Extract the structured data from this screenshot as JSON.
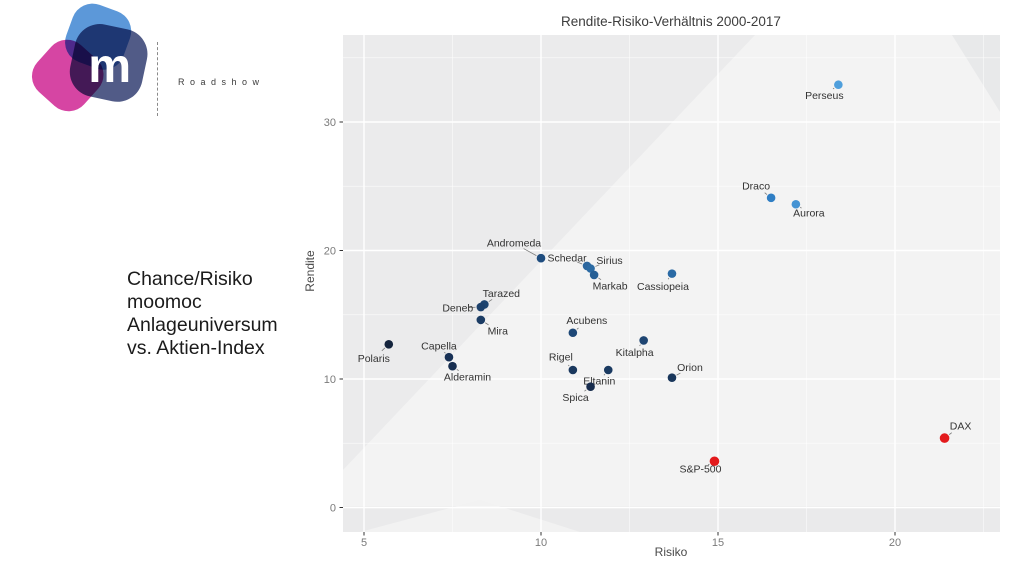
{
  "branding": {
    "logo_letter": "m",
    "tagline": "Roadshow",
    "logo_colors": {
      "blue": "#4e8fd6",
      "magenta": "#cf2493",
      "navy": "#323e72"
    }
  },
  "caption": {
    "lines": [
      "Chance/Risiko",
      "moomoc",
      "Anlageuniversum",
      "vs. Aktien-Index"
    ]
  },
  "chart_data": {
    "type": "scatter",
    "title": "Rendite-Risiko-Verhältnis 2000-2017",
    "xlabel": "Risiko",
    "ylabel": "Rendite",
    "x_ticks": [
      5,
      10,
      15,
      20
    ],
    "y_ticks": [
      0,
      10,
      20,
      30
    ],
    "xlim": [
      4.4,
      23.0
    ],
    "ylim": [
      -1.9,
      36.8
    ],
    "grid": "white major and minor gridlines on light gray panel",
    "legend": "none",
    "panel_color": "#f3f3f3",
    "series": [
      {
        "name": "Anlageuniversum",
        "points": [
          {
            "label": "Polaris",
            "x": 5.7,
            "y": 12.7,
            "color": "#14243d",
            "dx": -15,
            "dy": 14
          },
          {
            "label": "Capella",
            "x": 7.4,
            "y": 11.7,
            "color": "#183156",
            "dx": -10,
            "dy": -11
          },
          {
            "label": "Alderamin",
            "x": 7.5,
            "y": 11.0,
            "color": "#172e50",
            "dx": 15,
            "dy": 11
          },
          {
            "label": "Tarazed",
            "x": 8.4,
            "y": 15.8,
            "color": "#1d4470",
            "dx": 17,
            "dy": -11
          },
          {
            "label": "Deneb",
            "x": 8.3,
            "y": 15.6,
            "color": "#1c406b",
            "dx": -23,
            "dy": 1
          },
          {
            "label": "Mira",
            "x": 8.3,
            "y": 14.6,
            "color": "#1b3c64",
            "dx": 17,
            "dy": 11
          },
          {
            "label": "Andromeda",
            "x": 10.0,
            "y": 19.4,
            "color": "#1f4d7f",
            "dx": -27,
            "dy": -15
          },
          {
            "label": "Schedar",
            "x": 11.3,
            "y": 18.8,
            "color": "#2b669e",
            "dx": -20,
            "dy": -8
          },
          {
            "label": "Sirius",
            "x": 11.4,
            "y": 18.6,
            "color": "#2b6aa3",
            "dx": 19,
            "dy": -8
          },
          {
            "label": "Markab",
            "x": 11.5,
            "y": 18.1,
            "color": "#275f95",
            "dx": 16,
            "dy": 11
          },
          {
            "label": "Cassiopeia",
            "x": 13.7,
            "y": 18.2,
            "color": "#2a6aa5",
            "dx": -9,
            "dy": 13
          },
          {
            "label": "Acubens",
            "x": 10.9,
            "y": 13.6,
            "color": "#1e4877",
            "dx": 14,
            "dy": -12
          },
          {
            "label": "Kitalpha",
            "x": 12.9,
            "y": 13.0,
            "color": "#1e4572",
            "dx": -9,
            "dy": 12
          },
          {
            "label": "Rigel",
            "x": 10.9,
            "y": 10.7,
            "color": "#1a385e",
            "dx": -12,
            "dy": -13
          },
          {
            "label": "Eltanin",
            "x": 11.9,
            "y": 10.7,
            "color": "#1a3a61",
            "dx": -9,
            "dy": 11
          },
          {
            "label": "Spica",
            "x": 11.4,
            "y": 9.4,
            "color": "#172c4d",
            "dx": -15,
            "dy": 11
          },
          {
            "label": "Orion",
            "x": 13.7,
            "y": 10.1,
            "color": "#19365b",
            "dx": 18,
            "dy": -10
          },
          {
            "label": "Draco",
            "x": 16.5,
            "y": 24.1,
            "color": "#2f7ec4",
            "dx": -15,
            "dy": -12
          },
          {
            "label": "Aurora",
            "x": 17.2,
            "y": 23.6,
            "color": "#4593d3",
            "dx": 13,
            "dy": 9
          },
          {
            "label": "Perseus",
            "x": 18.4,
            "y": 32.9,
            "color": "#4f9fdc",
            "dx": -14,
            "dy": 11
          }
        ]
      },
      {
        "name": "Aktien-Index",
        "points": [
          {
            "label": "S&P-500",
            "x": 14.9,
            "y": 3.6,
            "color": "#e31a1c",
            "dx": -14,
            "dy": 8
          },
          {
            "label": "DAX",
            "x": 21.4,
            "y": 5.4,
            "color": "#e31a1c",
            "dx": 16,
            "dy": -12
          }
        ]
      }
    ]
  }
}
